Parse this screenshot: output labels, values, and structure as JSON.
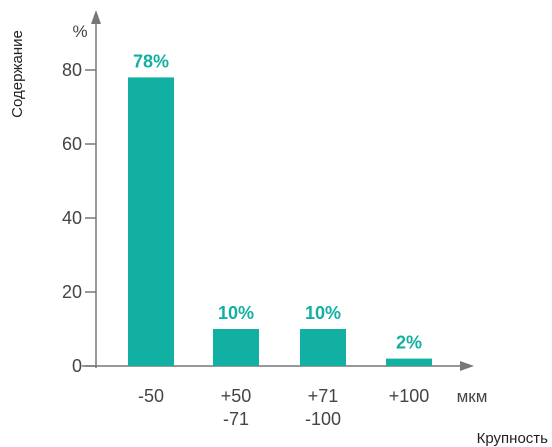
{
  "chart_data": {
    "type": "bar",
    "categories": [
      [
        "-50"
      ],
      [
        "+50",
        "-71"
      ],
      [
        "+71",
        "-100"
      ],
      [
        "+100"
      ]
    ],
    "values": [
      78,
      10,
      10,
      2
    ],
    "data_labels": [
      "78%",
      "10%",
      "10%",
      "2%"
    ],
    "ylabel": "Содержание",
    "y_unit": "%",
    "xlabel": "Крупность",
    "x_unit": "мкм",
    "yticks": [
      0,
      20,
      40,
      60,
      80
    ],
    "ylim": [
      0,
      92
    ],
    "grid": false,
    "colors": {
      "bar": "#12b0a3",
      "axis": "#777777",
      "label": "#12b0a3"
    }
  }
}
